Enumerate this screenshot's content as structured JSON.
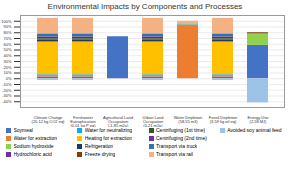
{
  "chart_data": {
    "type": "bar",
    "stacked": true,
    "title": "Environmental Impacts by Components and Processes",
    "categories": [
      "Climate Change\n(20.12 kg CO2 eq)",
      "Freshwater\nEutrophication\n(0.01 kg P eq)",
      "Agricultural Land\nOccupation\n(-1.85 m2a)",
      "Urban Land\nOccupation\n(0.21 m2a)",
      "Water Depletion\n(58.55 m3)",
      "Fossil Depletion\n(3.59 kg oil eq)",
      "Energy Use\n(2.58 MJ)"
    ],
    "series": [
      {
        "name": "Soymeal",
        "color": "#4472C4",
        "values": [
          3,
          3,
          73,
          3,
          0,
          3,
          58
        ]
      },
      {
        "name": "Water for extraction",
        "color": "#ED7D31",
        "values": [
          1,
          1,
          0,
          1,
          93,
          1,
          0
        ]
      },
      {
        "name": "Sodium hydroxide",
        "color": "#92D050",
        "values": [
          1,
          1,
          0,
          1,
          0,
          1,
          20
        ]
      },
      {
        "name": "Hydrochloric acid",
        "color": "#7030A0",
        "values": [
          1,
          1,
          0,
          1,
          0,
          1,
          0
        ]
      },
      {
        "name": "Water for neutralizing",
        "color": "#00B0F0",
        "values": [
          1,
          1,
          0,
          1,
          1,
          1,
          0
        ]
      },
      {
        "name": "Heating for extraction",
        "color": "#FFC000",
        "values": [
          57,
          57,
          0,
          57,
          2,
          57,
          0
        ]
      },
      {
        "name": "Refrigeration",
        "color": "#1F3864",
        "values": [
          3,
          3,
          0,
          3,
          0,
          3,
          0
        ]
      },
      {
        "name": "Freeze drying",
        "color": "#843C0C",
        "values": [
          2,
          2,
          0,
          2,
          0,
          2,
          2
        ]
      },
      {
        "name": "Centrifuging (1st time)",
        "color": "#375623",
        "values": [
          3,
          3,
          0,
          3,
          0,
          3,
          0
        ]
      },
      {
        "name": "Centrifuging (2nd time)",
        "color": "#7030A0",
        "values": [
          1,
          1,
          0,
          1,
          0,
          1,
          0
        ]
      },
      {
        "name": "Transport via truck",
        "color": "#2E75B6",
        "values": [
          5,
          5,
          0,
          5,
          0,
          5,
          0
        ]
      },
      {
        "name": "Transport via rail",
        "color": "#F4B183",
        "values": [
          27,
          27,
          0,
          27,
          4,
          27,
          0
        ]
      },
      {
        "name": "Avoided soy animal feed",
        "color": "#9DC3E6",
        "values": [
          -3,
          -3,
          0,
          -3,
          0,
          -3,
          -42
        ]
      }
    ],
    "ylim": [
      -50,
      110
    ],
    "yticks": [
      {
        "value": -40,
        "label": "-40%"
      },
      {
        "value": -30,
        "label": "-30%"
      },
      {
        "value": -20,
        "label": "-20%"
      },
      {
        "value": -10,
        "label": "-10%"
      },
      {
        "value": 0,
        "label": "0%"
      },
      {
        "value": 10,
        "label": "10%"
      },
      {
        "value": 20,
        "label": "20%"
      },
      {
        "value": 30,
        "label": "30%"
      },
      {
        "value": 40,
        "label": "40%"
      },
      {
        "value": 50,
        "label": "50%"
      },
      {
        "value": 60,
        "label": "60%"
      },
      {
        "value": 70,
        "label": "70%"
      },
      {
        "value": 80,
        "label": "80%"
      },
      {
        "value": 90,
        "label": "90%"
      },
      {
        "value": 100,
        "label": "100%"
      }
    ],
    "grid": true,
    "legend": "bottom"
  }
}
